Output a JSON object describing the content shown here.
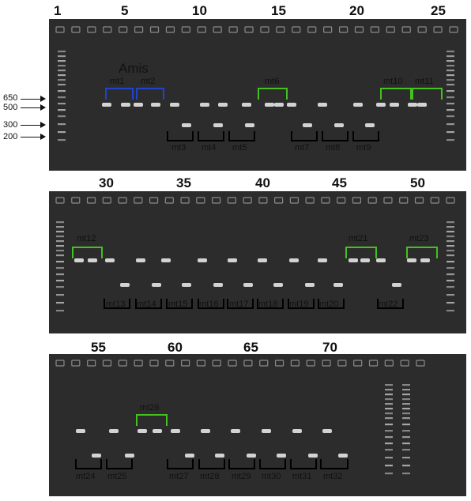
{
  "lane_numbers": {
    "gel1": [
      "1",
      "5",
      "10",
      "15",
      "20",
      "25"
    ],
    "gel2": [
      "30",
      "35",
      "40",
      "45",
      "50"
    ],
    "gel3": [
      "55",
      "60",
      "65",
      "70"
    ]
  },
  "markers": [
    "650",
    "500",
    "300",
    "200"
  ],
  "amis_label": "Amis",
  "mt_labels": [
    "mt1",
    "mt2",
    "mt3",
    "mt4",
    "mt5",
    "mt6",
    "mt7",
    "mt8",
    "mt9",
    "mt10",
    "mt11",
    "mt12",
    "mt13",
    "mt14",
    "mt15",
    "mt16",
    "mt17",
    "mt18",
    "mt19",
    "mt20",
    "mt21",
    "mt22",
    "mt23",
    "mt24",
    "mt25",
    "mt26",
    "mt27",
    "mt28",
    "mt29",
    "mt30",
    "mt31",
    "mt32"
  ],
  "colors": {
    "blue_bracket": "#2244cc",
    "green_bracket": "#44c020",
    "black_bracket": "#000000",
    "gel": "#2a2a2a",
    "band": "#e0e0e0"
  }
}
